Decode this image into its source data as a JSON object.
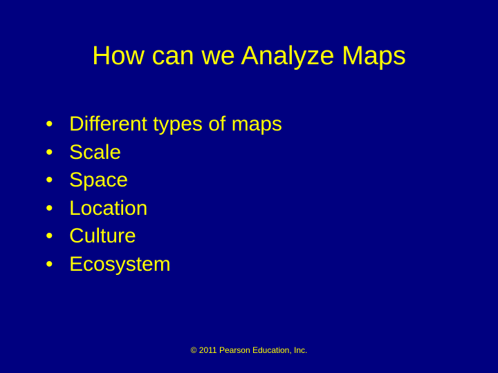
{
  "colors": {
    "background": "#000080",
    "text": "#ffff00"
  },
  "typography": {
    "title_fontsize": 38,
    "body_fontsize": 30,
    "copyright_fontsize": 12,
    "font_family": "Arial"
  },
  "title": "How can we Analyze Maps",
  "bullet_char": "•",
  "bullets": [
    "Different types of maps",
    "Scale",
    "Space",
    "Location",
    "Culture",
    "Ecosystem"
  ],
  "copyright": "© 2011 Pearson Education, Inc."
}
